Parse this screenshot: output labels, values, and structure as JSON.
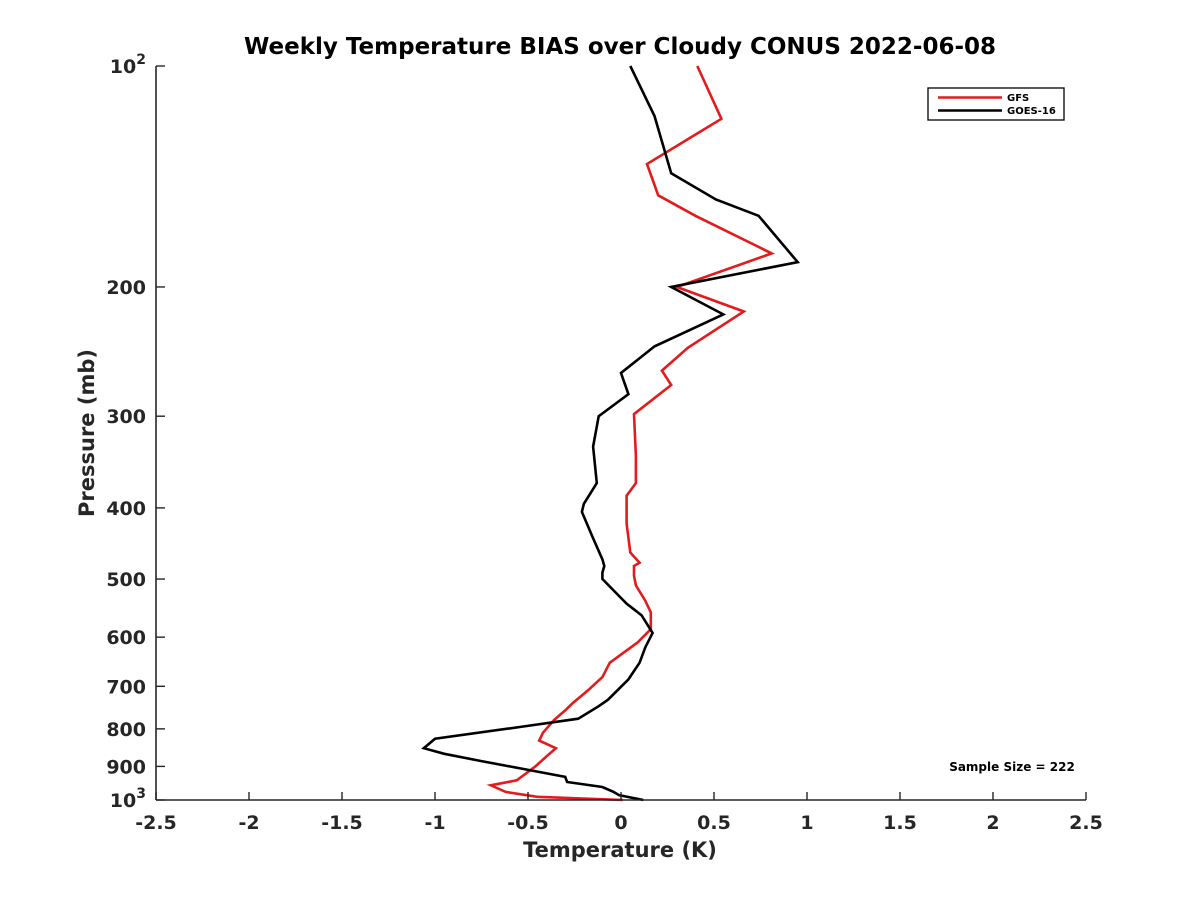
{
  "chart_data": {
    "type": "line",
    "title": "Weekly Temperature BIAS over Cloudy CONUS 2022-06-08",
    "xlabel": "Temperature (K)",
    "ylabel": "Pressure (mb)",
    "xlim": [
      -2.5,
      2.5
    ],
    "ylim": [
      100,
      1000
    ],
    "y_scale": "log",
    "y_reversed": true,
    "x_ticks": [
      "-2.5",
      "-2",
      "-1.5",
      "-1",
      "-0.5",
      "0",
      "0.5",
      "1",
      "1.5",
      "2",
      "2.5"
    ],
    "y_ticks": [
      {
        "value": 100,
        "base": "10",
        "exp": "2"
      },
      {
        "value": 200,
        "label": "200"
      },
      {
        "value": 300,
        "label": "300"
      },
      {
        "value": 400,
        "label": "400"
      },
      {
        "value": 500,
        "label": "500"
      },
      {
        "value": 600,
        "label": "600"
      },
      {
        "value": 700,
        "label": "700"
      },
      {
        "value": 800,
        "label": "800"
      },
      {
        "value": 900,
        "label": "900"
      },
      {
        "value": 1000,
        "base": "10",
        "exp": "3"
      }
    ],
    "grid": false,
    "legend_position": "top-right",
    "annotation": "Sample Size = 222",
    "series": [
      {
        "name": "GFS",
        "color": "#e41a1c",
        "points": [
          [
            0.41,
            100
          ],
          [
            0.54,
            118
          ],
          [
            0.14,
            136
          ],
          [
            0.2,
            150
          ],
          [
            0.4,
            160
          ],
          [
            0.81,
            180
          ],
          [
            0.3,
            200
          ],
          [
            0.66,
            216
          ],
          [
            0.36,
            242
          ],
          [
            0.22,
            260
          ],
          [
            0.27,
            272
          ],
          [
            0.07,
            298
          ],
          [
            0.08,
            340
          ],
          [
            0.08,
            370
          ],
          [
            0.03,
            385
          ],
          [
            0.03,
            420
          ],
          [
            0.05,
            460
          ],
          [
            0.1,
            475
          ],
          [
            0.07,
            480
          ],
          [
            0.07,
            495
          ],
          [
            0.08,
            510
          ],
          [
            0.13,
            535
          ],
          [
            0.16,
            555
          ],
          [
            0.16,
            585
          ],
          [
            0.09,
            610
          ],
          [
            -0.06,
            650
          ],
          [
            -0.1,
            680
          ],
          [
            -0.18,
            710
          ],
          [
            -0.26,
            738
          ],
          [
            -0.3,
            755
          ],
          [
            -0.36,
            778
          ],
          [
            -0.42,
            810
          ],
          [
            -0.44,
            830
          ],
          [
            -0.35,
            850
          ],
          [
            -0.4,
            872
          ],
          [
            -0.46,
            900
          ],
          [
            -0.56,
            940
          ],
          [
            -0.7,
            955
          ],
          [
            -0.62,
            975
          ],
          [
            -0.45,
            990
          ],
          [
            0.01,
            1000
          ]
        ]
      },
      {
        "name": "GOES-16",
        "color": "#000000",
        "points": [
          [
            0.05,
            100
          ],
          [
            0.18,
            117
          ],
          [
            0.27,
            140
          ],
          [
            0.51,
            152
          ],
          [
            0.74,
            160
          ],
          [
            0.95,
            185
          ],
          [
            0.27,
            200
          ],
          [
            0.55,
            218
          ],
          [
            0.18,
            241
          ],
          [
            0.0,
            262
          ],
          [
            0.04,
            280
          ],
          [
            -0.12,
            300
          ],
          [
            -0.15,
            330
          ],
          [
            -0.13,
            370
          ],
          [
            -0.2,
            395
          ],
          [
            -0.21,
            405
          ],
          [
            -0.15,
            440
          ],
          [
            -0.1,
            470
          ],
          [
            -0.09,
            480
          ],
          [
            -0.1,
            490
          ],
          [
            -0.1,
            500
          ],
          [
            0.03,
            540
          ],
          [
            0.11,
            560
          ],
          [
            0.17,
            592
          ],
          [
            0.13,
            620
          ],
          [
            0.1,
            650
          ],
          [
            0.04,
            685
          ],
          [
            -0.07,
            730
          ],
          [
            -0.12,
            745
          ],
          [
            -0.23,
            775
          ],
          [
            -0.54,
            795
          ],
          [
            -1.0,
            825
          ],
          [
            -1.06,
            850
          ],
          [
            -0.95,
            865
          ],
          [
            -0.75,
            885
          ],
          [
            -0.3,
            930
          ],
          [
            -0.29,
            945
          ],
          [
            -0.1,
            960
          ],
          [
            -0.04,
            975
          ],
          [
            -0.01,
            985
          ],
          [
            0.12,
            1000
          ]
        ]
      }
    ]
  }
}
